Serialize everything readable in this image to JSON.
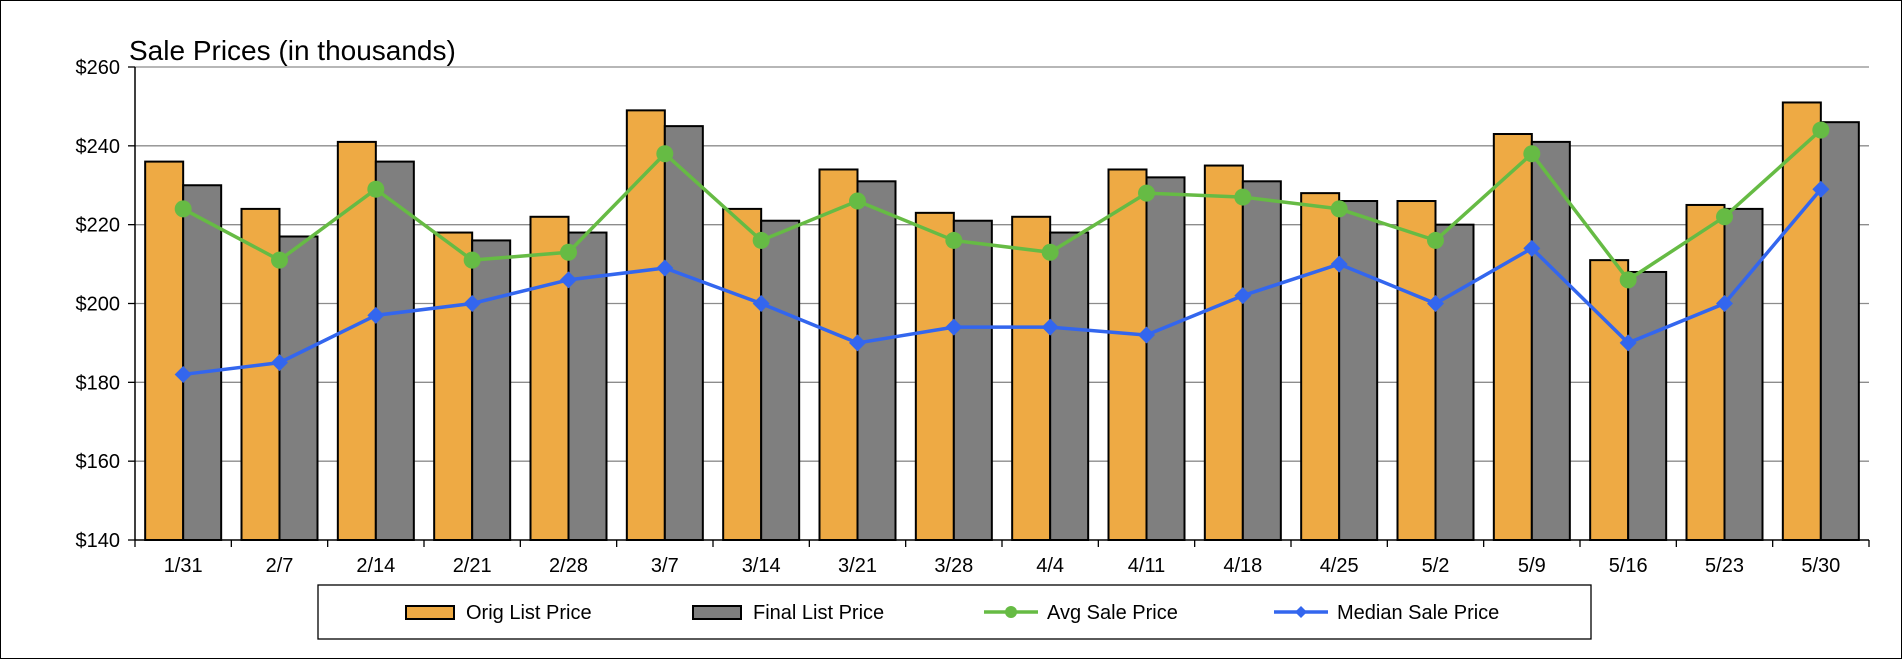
{
  "chart_data": {
    "type": "bar",
    "title": "Sale Prices (in thousands)",
    "xlabel": "",
    "ylabel": "",
    "categories": [
      "1/31",
      "2/7",
      "2/14",
      "2/21",
      "2/28",
      "3/7",
      "3/14",
      "3/21",
      "3/28",
      "4/4",
      "4/11",
      "4/18",
      "4/25",
      "5/2",
      "5/9",
      "5/16",
      "5/23",
      "5/30"
    ],
    "ylim": [
      140,
      260
    ],
    "yticks": [
      140,
      160,
      180,
      200,
      220,
      240,
      260
    ],
    "ytick_labels": [
      "$140",
      "$160",
      "$180",
      "$200",
      "$220",
      "$240",
      "$260"
    ],
    "grid": true,
    "legend_position": "bottom",
    "series": [
      {
        "name": "Orig List Price",
        "kind": "bar",
        "color": "#EEAA44",
        "values": [
          236,
          224,
          241,
          218,
          222,
          249,
          224,
          234,
          223,
          222,
          234,
          235,
          228,
          226,
          243,
          211,
          225,
          251
        ]
      },
      {
        "name": "Final List Price",
        "kind": "bar",
        "color": "#7F7F7F",
        "values": [
          230,
          217,
          236,
          216,
          218,
          245,
          221,
          231,
          221,
          218,
          232,
          231,
          226,
          220,
          241,
          208,
          224,
          246
        ]
      },
      {
        "name": "Avg Sale Price",
        "kind": "line",
        "marker": "circle",
        "color": "#66BB44",
        "values": [
          224,
          211,
          229,
          211,
          213,
          238,
          216,
          226,
          216,
          213,
          228,
          227,
          224,
          216,
          238,
          206,
          222,
          244
        ]
      },
      {
        "name": "Median Sale Price",
        "kind": "line",
        "marker": "diamond",
        "color": "#3366EE",
        "values": [
          182,
          185,
          197,
          200,
          206,
          209,
          200,
          190,
          194,
          194,
          192,
          202,
          210,
          200,
          214,
          190,
          200,
          229
        ]
      }
    ]
  }
}
